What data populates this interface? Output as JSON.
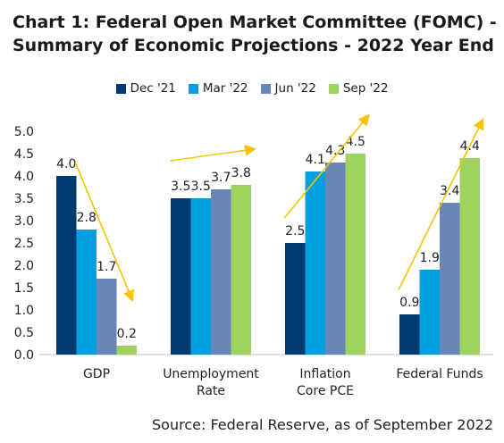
{
  "title_line1": "Chart 1: Federal Open Market Committee (FOMC) -",
  "title_line2": "Summary of Economic Projections - 2022 Year End",
  "source": "Source: Federal Reserve, as of September 2022",
  "chart_data": {
    "type": "bar",
    "categories": [
      [
        "GDP"
      ],
      [
        "Unemployment",
        "Rate"
      ],
      [
        "Inflation",
        "Core PCE"
      ],
      [
        "Federal Funds"
      ]
    ],
    "series": [
      {
        "name": "Dec '21",
        "color": "#003a70",
        "values": [
          4.0,
          3.5,
          2.5,
          0.9
        ]
      },
      {
        "name": "Mar '22",
        "color": "#009fdf",
        "values": [
          2.8,
          3.5,
          4.1,
          1.9
        ]
      },
      {
        "name": "Jun '22",
        "color": "#6a86b6",
        "values": [
          1.7,
          3.7,
          4.3,
          3.4
        ]
      },
      {
        "name": "Sep '22",
        "color": "#9fd35f",
        "values": [
          0.2,
          3.8,
          4.5,
          4.4
        ]
      }
    ],
    "data_labels": [
      [
        "4.0",
        "2.8",
        "1.7",
        "0.2"
      ],
      [
        "3.5",
        "3.5",
        "3.7",
        "3.8"
      ],
      [
        "2.5",
        "4.1",
        "4.3",
        "4.5"
      ],
      [
        "0.9",
        "1.9",
        "3.4",
        "4.4"
      ]
    ],
    "yticks": [
      "0.0",
      "0.5",
      "1.0",
      "1.5",
      "2.0",
      "2.5",
      "3.0",
      "3.5",
      "4.0",
      "4.5",
      "5.0"
    ],
    "ylim": [
      0,
      5
    ],
    "legend_position": "top-center",
    "trend_arrow_color": "#f5c400",
    "xlabel": "",
    "ylabel": ""
  }
}
